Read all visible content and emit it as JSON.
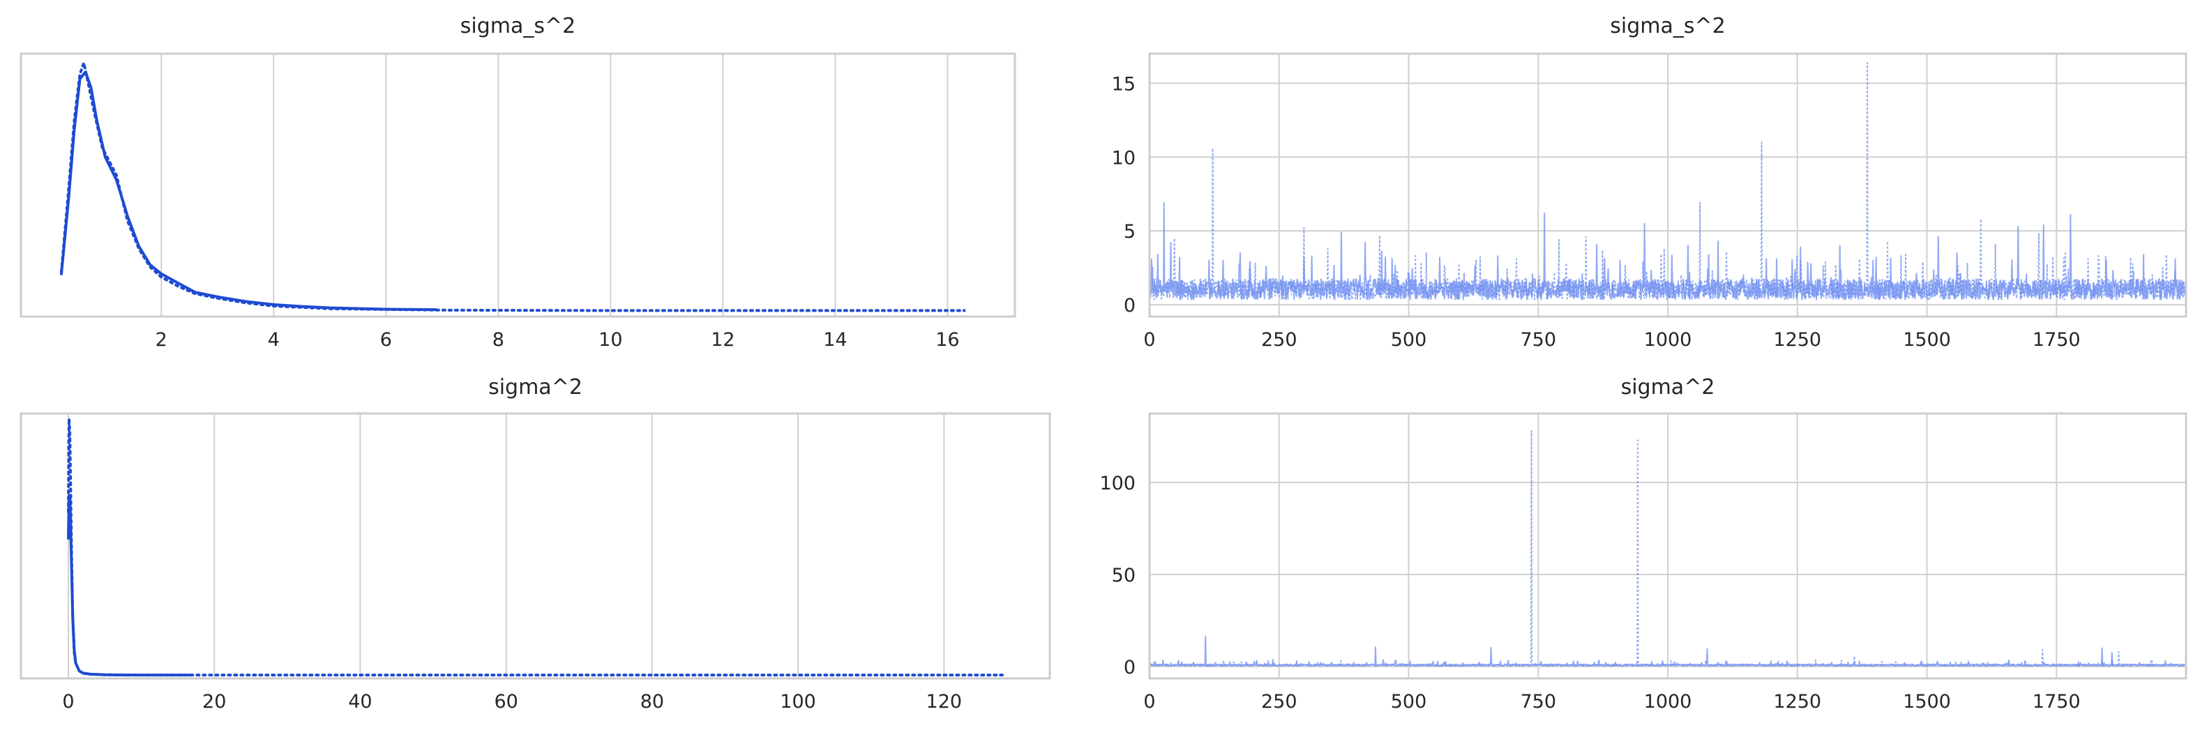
{
  "chart_data": [
    {
      "id": "kde_s",
      "type": "line",
      "title": "sigma_s^2",
      "xlabel": "",
      "ylabel": "",
      "xlim": [
        -0.5,
        17.2
      ],
      "ylim": [
        -0.008,
        0.565
      ],
      "xticks": [
        "2",
        "4",
        "6",
        "8",
        "10",
        "12",
        "14",
        "16"
      ],
      "yticks": [],
      "grid": "vertical",
      "series": [
        {
          "style": "solid",
          "color": "#1f4bd1",
          "x": [
            0.22,
            0.35,
            0.45,
            0.55,
            0.65,
            0.75,
            0.85,
            1.0,
            1.2,
            1.4,
            1.6,
            1.8,
            2.0,
            2.3,
            2.6,
            3.0,
            3.5,
            4.0,
            4.5,
            5.0,
            6.0,
            6.9
          ],
          "y": [
            0.085,
            0.25,
            0.4,
            0.51,
            0.525,
            0.49,
            0.42,
            0.34,
            0.29,
            0.21,
            0.145,
            0.105,
            0.085,
            0.065,
            0.045,
            0.035,
            0.025,
            0.018,
            0.014,
            0.011,
            0.008,
            0.007
          ]
        },
        {
          "style": "dotted",
          "color": "#1f4bd1",
          "x": [
            0.22,
            0.35,
            0.45,
            0.55,
            0.62,
            0.7,
            0.8,
            0.95,
            1.2,
            1.4,
            1.6,
            1.8,
            2.0,
            2.3,
            2.6,
            3.0,
            3.5,
            4.0,
            5.0,
            7.0,
            10.0,
            13.0,
            16.3
          ],
          "y": [
            0.09,
            0.27,
            0.42,
            0.52,
            0.545,
            0.5,
            0.44,
            0.36,
            0.3,
            0.2,
            0.14,
            0.1,
            0.078,
            0.058,
            0.042,
            0.032,
            0.022,
            0.015,
            0.009,
            0.006,
            0.005,
            0.005,
            0.005
          ]
        }
      ]
    },
    {
      "id": "trace_s",
      "type": "line",
      "title": "sigma_s^2",
      "xlabel": "",
      "ylabel": "",
      "xlim": [
        0,
        2000
      ],
      "ylim": [
        -0.8,
        17.0
      ],
      "xticks": [
        "0",
        "250",
        "500",
        "750",
        "1000",
        "1250",
        "1500",
        "1750"
      ],
      "yticks": [
        "0",
        "5",
        "10",
        "15"
      ],
      "grid": "both",
      "series": [
        {
          "style": "solid",
          "color": "#6e8ef0",
          "spikes": [
            [
              28,
              6.9
            ],
            [
              41,
              4.2
            ],
            [
              142,
              3.0
            ],
            [
              175,
              3.5
            ],
            [
              225,
              2.6
            ],
            [
              313,
              3.3
            ],
            [
              370,
              4.9
            ],
            [
              416,
              4.2
            ],
            [
              448,
              3.6
            ],
            [
              560,
              3.2
            ],
            [
              672,
              3.3
            ],
            [
              762,
              6.2
            ],
            [
              863,
              4.1
            ],
            [
              908,
              3.0
            ],
            [
              955,
              5.5
            ],
            [
              1039,
              4.0
            ],
            [
              1097,
              4.3
            ],
            [
              1210,
              3.1
            ],
            [
              1256,
              3.9
            ],
            [
              1332,
              4.0
            ],
            [
              1402,
              3.2
            ],
            [
              1522,
              4.6
            ],
            [
              1558,
              3.5
            ],
            [
              1676,
              5.3
            ],
            [
              1725,
              5.4
            ],
            [
              1777,
              6.1
            ],
            [
              1846,
              3.0
            ],
            [
              1918,
              3.4
            ]
          ]
        },
        {
          "style": "dotted",
          "color": "#6e8ef0",
          "spikes": [
            [
              48,
              4.5
            ],
            [
              122,
              10.6
            ],
            [
              204,
              2.8
            ],
            [
              298,
              5.2
            ],
            [
              344,
              3.8
            ],
            [
              444,
              4.7
            ],
            [
              534,
              3.5
            ],
            [
              630,
              3.0
            ],
            [
              708,
              3.1
            ],
            [
              790,
              4.4
            ],
            [
              842,
              4.6
            ],
            [
              874,
              3.7
            ],
            [
              993,
              3.8
            ],
            [
              1062,
              6.9
            ],
            [
              1113,
              3.6
            ],
            [
              1181,
              11.0
            ],
            [
              1249,
              3.3
            ],
            [
              1304,
              2.9
            ],
            [
              1385,
              16.4
            ],
            [
              1424,
              4.3
            ],
            [
              1459,
              3.4
            ],
            [
              1492,
              2.9
            ],
            [
              1604,
              5.8
            ],
            [
              1632,
              4.1
            ],
            [
              1716,
              4.8
            ],
            [
              1811,
              3.1
            ],
            [
              1893,
              3.2
            ],
            [
              1962,
              3.4
            ]
          ]
        }
      ]
    },
    {
      "id": "kde_sig",
      "type": "line",
      "title": "sigma^2",
      "xlabel": "",
      "ylabel": "",
      "xlim": [
        -6.5,
        134.5
      ],
      "ylim": [
        -0.008,
        0.99
      ],
      "xticks": [
        "0",
        "20",
        "40",
        "60",
        "80",
        "100",
        "120"
      ],
      "yticks": [],
      "grid": "vertical",
      "series": [
        {
          "style": "solid",
          "color": "#1f4bd1",
          "x": [
            0.0,
            0.1,
            0.2,
            0.3,
            0.45,
            0.6,
            0.8,
            1.0,
            1.5,
            2.0,
            3.0,
            5.0,
            8.0,
            12.0,
            16.8
          ],
          "y": [
            0.52,
            0.68,
            0.68,
            0.58,
            0.4,
            0.22,
            0.1,
            0.05,
            0.02,
            0.012,
            0.008,
            0.006,
            0.005,
            0.005,
            0.005
          ]
        },
        {
          "style": "dotted",
          "color": "#1f4bd1",
          "x": [
            0.0,
            0.05,
            0.1,
            0.2,
            0.3,
            0.45,
            0.6,
            0.8,
            1.0,
            1.5,
            2.0,
            3.0,
            5.0,
            10.0,
            20.0,
            50.0,
            90.0,
            128.0
          ],
          "y": [
            0.62,
            0.86,
            0.97,
            0.92,
            0.75,
            0.45,
            0.22,
            0.09,
            0.05,
            0.02,
            0.012,
            0.008,
            0.006,
            0.005,
            0.005,
            0.005,
            0.005,
            0.005
          ]
        }
      ]
    },
    {
      "id": "trace_sig",
      "type": "line",
      "title": "sigma^2",
      "xlabel": "",
      "ylabel": "",
      "xlim": [
        0,
        2000
      ],
      "ylim": [
        -6.5,
        137.5
      ],
      "xticks": [
        "0",
        "250",
        "500",
        "750",
        "1000",
        "1250",
        "1500",
        "1750"
      ],
      "yticks": [
        "0",
        "50",
        "100"
      ],
      "grid": "both",
      "series": [
        {
          "style": "solid",
          "color": "#6e8ef0",
          "spikes": [
            [
              26,
              3.5
            ],
            [
              108,
              16.5
            ],
            [
              238,
              3.8
            ],
            [
              284,
              3.0
            ],
            [
              436,
              10.5
            ],
            [
              503,
              2.8
            ],
            [
              570,
              2.6
            ],
            [
              659,
              10.2
            ],
            [
              818,
              2.9
            ],
            [
              990,
              3.0
            ],
            [
              1076,
              9.5
            ],
            [
              1199,
              2.8
            ],
            [
              1370,
              2.7
            ],
            [
              1520,
              2.8
            ],
            [
              1658,
              3.0
            ],
            [
              1838,
              10.0
            ],
            [
              1857,
              7.5
            ],
            [
              1960,
              3.0
            ]
          ]
        },
        {
          "style": "dotted",
          "color": "#6e8ef0",
          "spikes": [
            [
              162,
              2.5
            ],
            [
              330,
              2.7
            ],
            [
              737,
              128.0
            ],
            [
              942,
              123.0
            ],
            [
              1114,
              2.9
            ],
            [
              1360,
              5.5
            ],
            [
              1440,
              2.6
            ],
            [
              1723,
              9.0
            ],
            [
              1870,
              8.0
            ],
            [
              1932,
              2.8
            ]
          ]
        }
      ]
    }
  ]
}
